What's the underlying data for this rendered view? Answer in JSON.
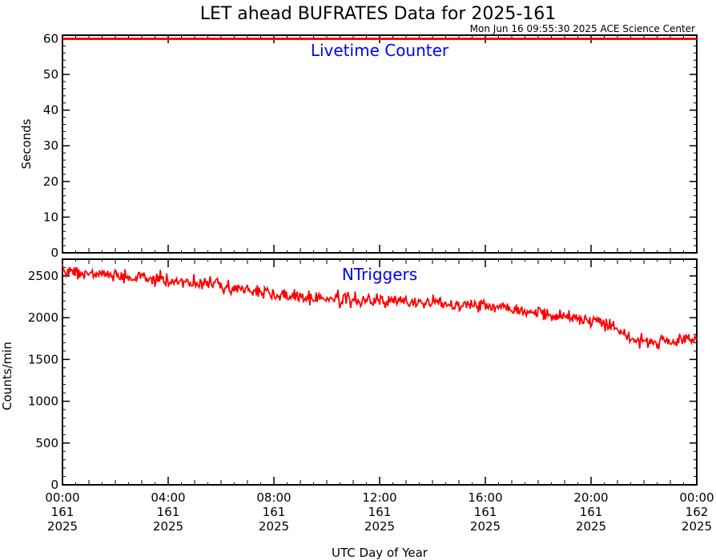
{
  "title": "LET ahead BUFRATES Data for 2025-161",
  "timestamp": "Mon Jun 16 09:55:30 2025 ACE Science Center",
  "xlabel": "UTC Day of Year",
  "colors": {
    "series": "#ff0000",
    "label": "#0000ff",
    "axes": "#000000"
  },
  "chart_data": [
    {
      "type": "line",
      "label": "Livetime Counter",
      "ylabel": "Seconds",
      "ylim": [
        0,
        61
      ],
      "yticks": [
        0,
        10,
        20,
        30,
        40,
        50,
        60
      ],
      "series": [
        {
          "x": [
            0,
            24
          ],
          "y": [
            60,
            60
          ]
        }
      ]
    },
    {
      "type": "line",
      "label": "NTriggers",
      "ylabel": "Counts/min",
      "ylim": [
        0,
        2700
      ],
      "yticks": [
        0,
        500,
        1000,
        1500,
        2000,
        2500
      ],
      "series": [
        {
          "x": [
            0,
            1,
            2,
            3,
            4,
            5,
            6,
            7,
            8,
            9,
            10,
            11,
            12,
            13,
            14,
            15,
            16,
            17,
            18,
            19,
            20,
            20.5,
            21,
            21.5,
            22,
            22.5,
            23,
            23.5,
            24
          ],
          "y": [
            2570,
            2530,
            2500,
            2470,
            2450,
            2420,
            2390,
            2330,
            2280,
            2250,
            2230,
            2210,
            2200,
            2190,
            2180,
            2170,
            2150,
            2120,
            2060,
            2010,
            1970,
            1940,
            1880,
            1750,
            1720,
            1700,
            1700,
            1710,
            1740
          ]
        }
      ]
    }
  ],
  "xticks": [
    {
      "time": "00:00",
      "doy": "161",
      "year": "2025"
    },
    {
      "time": "04:00",
      "doy": "161",
      "year": "2025"
    },
    {
      "time": "08:00",
      "doy": "161",
      "year": "2025"
    },
    {
      "time": "12:00",
      "doy": "161",
      "year": "2025"
    },
    {
      "time": "16:00",
      "doy": "161",
      "year": "2025"
    },
    {
      "time": "20:00",
      "doy": "161",
      "year": "2025"
    },
    {
      "time": "00:00",
      "doy": "162",
      "year": "2025"
    }
  ]
}
